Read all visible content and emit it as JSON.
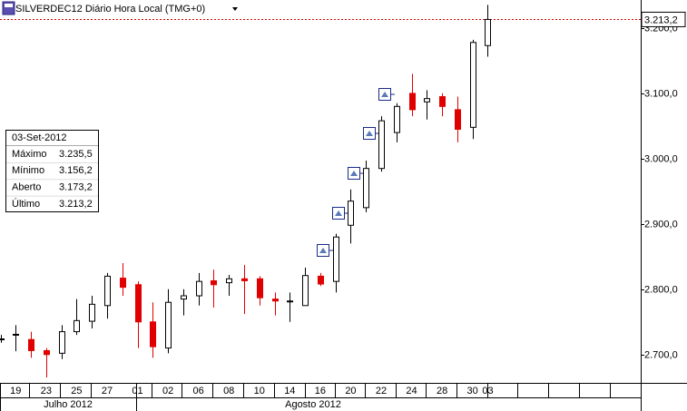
{
  "chart_data": {
    "type": "candlestick",
    "title": "SILVERDEC12 Diário Hora Local (TMG+0)",
    "categories": [
      null,
      "19",
      null,
      "23",
      null,
      "25",
      null,
      "27",
      null,
      "01",
      null,
      "02",
      null,
      "06",
      null,
      "08",
      null,
      "10",
      null,
      "14",
      null,
      "16",
      null,
      "20",
      null,
      "22",
      null,
      "24",
      null,
      "28",
      null,
      "30",
      "03"
    ],
    "x_groups": [
      "Julho 2012",
      "Agosto 2012"
    ],
    "open": [
      2724,
      2730,
      2723,
      2706,
      2702,
      2735,
      2751,
      2775,
      2817,
      2807,
      2750,
      2710,
      2785,
      2790,
      2813,
      2810,
      2816,
      2816,
      2785,
      2782,
      2775,
      2820,
      2812,
      2898,
      2925,
      2985,
      3040,
      3100,
      3087,
      3095,
      3075,
      3048,
      3173.2
    ],
    "high": [
      2730,
      2745,
      2735,
      2710,
      2745,
      2785,
      2790,
      2825,
      2840,
      2812,
      2780,
      2800,
      2800,
      2825,
      2830,
      2822,
      2837,
      2820,
      2795,
      2795,
      2833,
      2825,
      2885,
      2953,
      2997,
      3065,
      3085,
      3130,
      3105,
      3100,
      3095,
      3182,
      3235.5
    ],
    "low": [
      2718,
      2705,
      2695,
      2665,
      2693,
      2730,
      2740,
      2755,
      2790,
      2710,
      2695,
      2702,
      2760,
      2775,
      2772,
      2790,
      2762,
      2775,
      2760,
      2750,
      2775,
      2805,
      2795,
      2870,
      2918,
      2980,
      3025,
      3065,
      3060,
      3065,
      3025,
      3030,
      3156.2
    ],
    "close": [
      2724,
      2731,
      2706,
      2700,
      2735,
      2752,
      2777,
      2820,
      2803,
      2750,
      2712,
      2780,
      2790,
      2812,
      2807,
      2816,
      2813,
      2787,
      2782,
      2782,
      2821,
      2808,
      2880,
      2935,
      2985,
      3058,
      3080,
      3075,
      3092,
      3080,
      3045,
      3178,
      3213.2
    ],
    "up_color": "#ffffff",
    "down_color": "#e00000",
    "ylim": [
      2658,
      3243
    ],
    "yticks": [
      {
        "value": 2700,
        "label": "2.700,0"
      },
      {
        "value": 2800,
        "label": "2.800,0"
      },
      {
        "value": 2900,
        "label": "2.900,0"
      },
      {
        "value": 3000,
        "label": "3.000,0"
      },
      {
        "value": 3100,
        "label": "3.100,0"
      },
      {
        "value": 3200,
        "label": "3.200,0"
      }
    ],
    "last_price": {
      "value": 3213.2,
      "label": "3.213,2"
    },
    "info": {
      "date": "03-Set-2012",
      "rows": [
        [
          "Máximo",
          "3.235,5"
        ],
        [
          "Mínimo",
          "3.156,2"
        ],
        [
          "Aberto",
          "3.173,2"
        ],
        [
          "Último",
          "3.213,2"
        ]
      ]
    }
  }
}
